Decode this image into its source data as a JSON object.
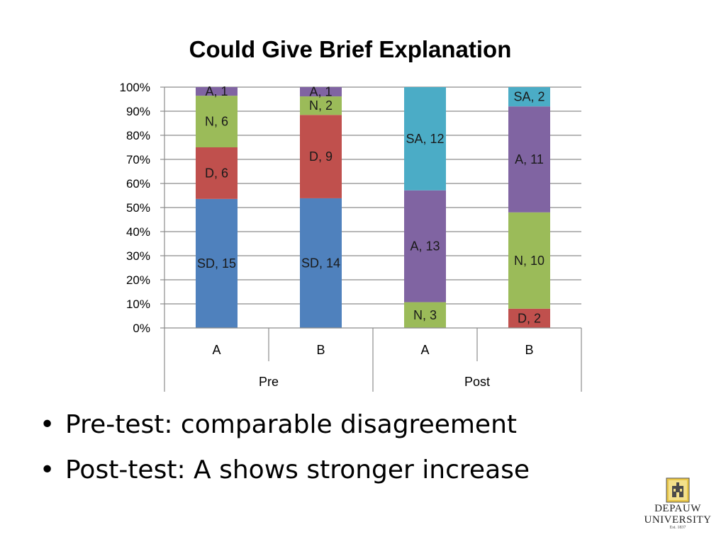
{
  "slide": {
    "bullets": [
      "Pre-test: comparable disagreement",
      "Post-test: A shows stronger increase"
    ],
    "bullet_char": "•"
  },
  "logo": {
    "line1": "DEPAUW",
    "line2": "UNIVERSITY",
    "est": "Est. 1837",
    "icon": "depauw-seal-icon"
  },
  "chart_data": {
    "type": "bar",
    "stacked": "percent",
    "title": "Could Give Brief Explanation",
    "y_ticks": [
      "0%",
      "10%",
      "20%",
      "30%",
      "40%",
      "50%",
      "60%",
      "70%",
      "80%",
      "90%",
      "100%"
    ],
    "ylim": [
      0,
      100
    ],
    "grid": true,
    "categories": [
      "A",
      "B",
      "A",
      "B"
    ],
    "groups": [
      {
        "label": "Pre",
        "categories": [
          "A",
          "B"
        ]
      },
      {
        "label": "Post",
        "categories": [
          "A",
          "B"
        ]
      }
    ],
    "series": [
      {
        "name": "SD",
        "color": "#4F81BD",
        "values": [
          15,
          14,
          0,
          0
        ]
      },
      {
        "name": "D",
        "color": "#C0504D",
        "values": [
          6,
          9,
          0,
          2
        ]
      },
      {
        "name": "N",
        "color": "#9BBB59",
        "values": [
          6,
          2,
          3,
          10
        ]
      },
      {
        "name": "A",
        "color": "#8064A2",
        "values": [
          1,
          1,
          13,
          11
        ]
      },
      {
        "name": "SA",
        "color": "#4BACC6",
        "values": [
          0,
          0,
          12,
          2
        ]
      }
    ]
  }
}
